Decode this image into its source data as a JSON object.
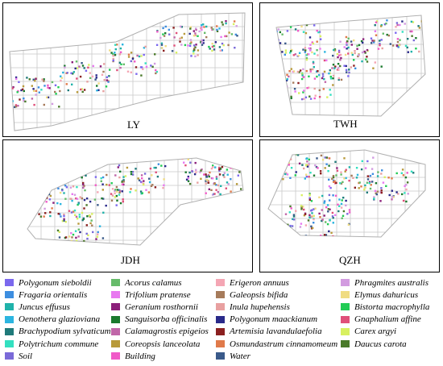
{
  "panels": [
    {
      "id": "LY",
      "label": "LY"
    },
    {
      "id": "TWH",
      "label": "TWH"
    },
    {
      "id": "JDH",
      "label": "JDH"
    },
    {
      "id": "QZH",
      "label": "QZH"
    }
  ],
  "legend": [
    {
      "label": "Polygonum sieboldii",
      "color": "#7b68ee"
    },
    {
      "label": "Acorus calamus",
      "color": "#66bb6a"
    },
    {
      "label": "Erigeron annuus",
      "color": "#f4a6b4"
    },
    {
      "label": "Phragmites australis",
      "color": "#d29be0"
    },
    {
      "label": "Fragaria orientalis",
      "color": "#3d8ee0"
    },
    {
      "label": "Trifolium pratense",
      "color": "#e879f0"
    },
    {
      "label": "Galeopsis bifida",
      "color": "#a67b5b"
    },
    {
      "label": "Elymus dahuricus",
      "color": "#f0dc82"
    },
    {
      "label": "Juncus effusus",
      "color": "#20b2aa"
    },
    {
      "label": "Geranium rosthornii",
      "color": "#8b1f7a"
    },
    {
      "label": "Inula hupehensis",
      "color": "#e8a0a0"
    },
    {
      "label": "Bistorta macrophylla",
      "color": "#22cc55"
    },
    {
      "label": "Oenothera glazioviana",
      "color": "#2cb5e0"
    },
    {
      "label": "Sanguisorba officinalis",
      "color": "#1b7a2e"
    },
    {
      "label": "Polygonum maackianum",
      "color": "#2a2a8a"
    },
    {
      "label": "Gnaphalium affine",
      "color": "#e0507a"
    },
    {
      "label": "Brachypodium sylvaticum",
      "color": "#1f7a7a"
    },
    {
      "label": "Calamagrostis epigeios",
      "color": "#c066a8"
    },
    {
      "label": "Artemisia lavandulaefolia",
      "color": "#8b2020"
    },
    {
      "label": "Carex argyi",
      "color": "#d8f060"
    },
    {
      "label": "Polytrichum commune",
      "color": "#33e0c0"
    },
    {
      "label": "Coreopsis lanceolata",
      "color": "#b89a3a"
    },
    {
      "label": "Osmundastrum cinnamomeum",
      "color": "#e07a4a"
    },
    {
      "label": "Daucus carota",
      "color": "#4a7a2a"
    },
    {
      "label": "Soil",
      "color": "#7a6ad8"
    },
    {
      "label": "Building",
      "color": "#f05ac8"
    },
    {
      "label": "Water",
      "color": "#3a5a8a"
    }
  ]
}
